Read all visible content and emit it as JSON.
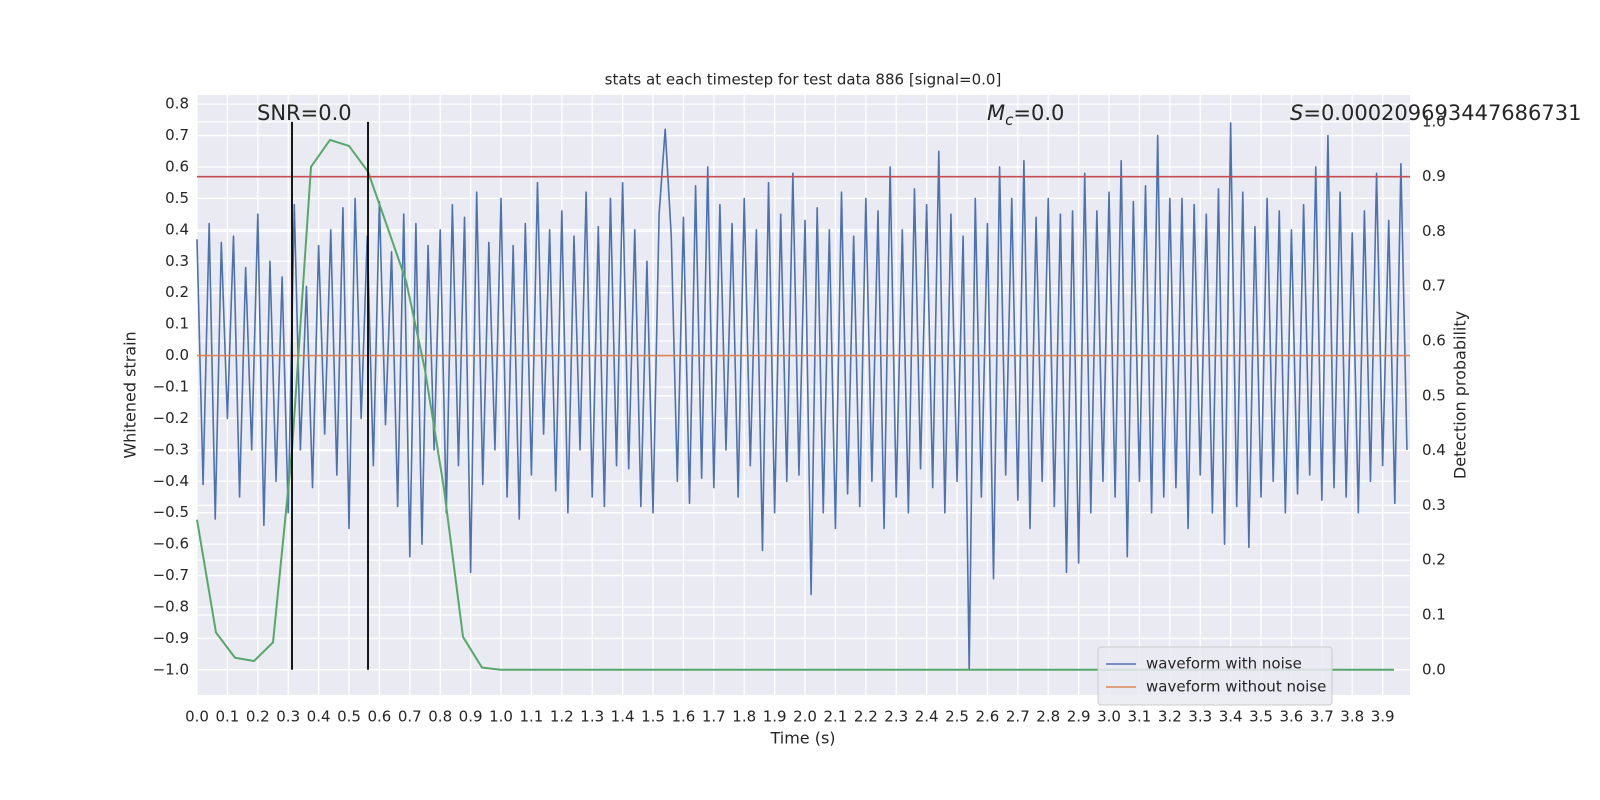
{
  "chart_data": {
    "type": "line",
    "title": "stats at each timestep for test data 886 [signal=0.0]",
    "xlabel": "Time (s)",
    "ylabel": "Whitened strain",
    "y2label": "Detection probability",
    "annotations": [
      {
        "text": "SNR=0.0"
      },
      {
        "symbol": "M",
        "sub": "c",
        "text": "=0.0"
      },
      {
        "symbol": "S",
        "text": "=0.000209693447686731"
      }
    ],
    "grid": true,
    "legend": "lower right",
    "xlim": [
      0,
      3.99
    ],
    "ylim": [
      -1.08,
      0.829
    ],
    "y2lim": [
      -0.046,
      1.049
    ],
    "xticks": [
      {
        "value": 0,
        "label": "0.0"
      },
      {
        "value": 0.1,
        "label": "0.1"
      },
      {
        "value": 0.2,
        "label": "0.2"
      },
      {
        "value": 0.3,
        "label": "0.3"
      },
      {
        "value": 0.4,
        "label": "0.4"
      },
      {
        "value": 0.5,
        "label": "0.5"
      },
      {
        "value": 0.6,
        "label": "0.6"
      },
      {
        "value": 0.7,
        "label": "0.7"
      },
      {
        "value": 0.8,
        "label": "0.8"
      },
      {
        "value": 0.9,
        "label": "0.9"
      },
      {
        "value": 1,
        "label": "1.0"
      },
      {
        "value": 1.1,
        "label": "1.1"
      },
      {
        "value": 1.2,
        "label": "1.2"
      },
      {
        "value": 1.3,
        "label": "1.3"
      },
      {
        "value": 1.4,
        "label": "1.4"
      },
      {
        "value": 1.5,
        "label": "1.5"
      },
      {
        "value": 1.6,
        "label": "1.6"
      },
      {
        "value": 1.7,
        "label": "1.7"
      },
      {
        "value": 1.8,
        "label": "1.8"
      },
      {
        "value": 1.9,
        "label": "1.9"
      },
      {
        "value": 2,
        "label": "2.0"
      },
      {
        "value": 2.1,
        "label": "2.1"
      },
      {
        "value": 2.2,
        "label": "2.2"
      },
      {
        "value": 2.3,
        "label": "2.3"
      },
      {
        "value": 2.4,
        "label": "2.4"
      },
      {
        "value": 2.5,
        "label": "2.5"
      },
      {
        "value": 2.6,
        "label": "2.6"
      },
      {
        "value": 2.7,
        "label": "2.7"
      },
      {
        "value": 2.8,
        "label": "2.8"
      },
      {
        "value": 2.9,
        "label": "2.9"
      },
      {
        "value": 3,
        "label": "3.0"
      },
      {
        "value": 3.1,
        "label": "3.1"
      },
      {
        "value": 3.2,
        "label": "3.2"
      },
      {
        "value": 3.3,
        "label": "3.3"
      },
      {
        "value": 3.4,
        "label": "3.4"
      },
      {
        "value": 3.5,
        "label": "3.5"
      },
      {
        "value": 3.6,
        "label": "3.6"
      },
      {
        "value": 3.7,
        "label": "3.7"
      },
      {
        "value": 3.8,
        "label": "3.8"
      },
      {
        "value": 3.9,
        "label": "3.9"
      }
    ],
    "yticks": [
      {
        "value": -1,
        "label": "−1.0"
      },
      {
        "value": -0.9,
        "label": "−0.9"
      },
      {
        "value": -0.8,
        "label": "−0.8"
      },
      {
        "value": -0.7,
        "label": "−0.7"
      },
      {
        "value": -0.6,
        "label": "−0.6"
      },
      {
        "value": -0.5,
        "label": "−0.5"
      },
      {
        "value": -0.4,
        "label": "−0.4"
      },
      {
        "value": -0.3,
        "label": "−0.3"
      },
      {
        "value": -0.2,
        "label": "−0.2"
      },
      {
        "value": -0.1,
        "label": "−0.1"
      },
      {
        "value": 0,
        "label": "0.0"
      },
      {
        "value": 0.1,
        "label": "0.1"
      },
      {
        "value": 0.2,
        "label": "0.2"
      },
      {
        "value": 0.3,
        "label": "0.3"
      },
      {
        "value": 0.4,
        "label": "0.4"
      },
      {
        "value": 0.5,
        "label": "0.5"
      },
      {
        "value": 0.6,
        "label": "0.6"
      },
      {
        "value": 0.7,
        "label": "0.7"
      },
      {
        "value": 0.8,
        "label": "0.8"
      }
    ],
    "y2ticks": [
      {
        "value": 0,
        "label": "0.0"
      },
      {
        "value": 0.1,
        "label": "0.1"
      },
      {
        "value": 0.2,
        "label": "0.2"
      },
      {
        "value": 0.3,
        "label": "0.3"
      },
      {
        "value": 0.4,
        "label": "0.4"
      },
      {
        "value": 0.5,
        "label": "0.5"
      },
      {
        "value": 0.6,
        "label": "0.6"
      },
      {
        "value": 0.7,
        "label": "0.7"
      },
      {
        "value": 0.8,
        "label": "0.8"
      },
      {
        "value": 0.9,
        "label": "0.9"
      },
      {
        "value": 1,
        "label": "1.0"
      }
    ],
    "hlines": [
      {
        "value": 0.9,
        "axis": "y2",
        "color": "#c44e52"
      }
    ],
    "vlines": [
      0.3125,
      0.5625
    ],
    "vline_color": "#000000",
    "series": [
      {
        "name": "waveform with noise",
        "color": "#4c72b0",
        "x": [
          0,
          0.02,
          0.04,
          0.06,
          0.08,
          0.1,
          0.12,
          0.14,
          0.16,
          0.18,
          0.2,
          0.22,
          0.24,
          0.26,
          0.28,
          0.3,
          0.32,
          0.34,
          0.36,
          0.38,
          0.4,
          0.42,
          0.44,
          0.46,
          0.48,
          0.5,
          0.52,
          0.54,
          0.56,
          0.58,
          0.6,
          0.62,
          0.64,
          0.66,
          0.68,
          0.7,
          0.72,
          0.74,
          0.76,
          0.78,
          0.8,
          0.82,
          0.84,
          0.86,
          0.88,
          0.9,
          0.92,
          0.94,
          0.96,
          0.98,
          1,
          1.02,
          1.04,
          1.06,
          1.08,
          1.1,
          1.12,
          1.14,
          1.16,
          1.18,
          1.2,
          1.22,
          1.24,
          1.26,
          1.28,
          1.3,
          1.32,
          1.34,
          1.36,
          1.38,
          1.4,
          1.42,
          1.44,
          1.46,
          1.48,
          1.5,
          1.52,
          1.54,
          1.56,
          1.58,
          1.6,
          1.62,
          1.64,
          1.66,
          1.68,
          1.7,
          1.72,
          1.74,
          1.76,
          1.78,
          1.8,
          1.82,
          1.84,
          1.86,
          1.88,
          1.9,
          1.92,
          1.94,
          1.96,
          1.98,
          2,
          2.02,
          2.04,
          2.06,
          2.08,
          2.1,
          2.12,
          2.14,
          2.16,
          2.18,
          2.2,
          2.22,
          2.24,
          2.26,
          2.28,
          2.3,
          2.32,
          2.34,
          2.36,
          2.38,
          2.4,
          2.42,
          2.44,
          2.46,
          2.48,
          2.5,
          2.52,
          2.54,
          2.56,
          2.58,
          2.6,
          2.62,
          2.64,
          2.66,
          2.68,
          2.7,
          2.72,
          2.74,
          2.76,
          2.78,
          2.8,
          2.82,
          2.84,
          2.86,
          2.88,
          2.9,
          2.92,
          2.94,
          2.96,
          2.98,
          3,
          3.02,
          3.04,
          3.06,
          3.08,
          3.1,
          3.12,
          3.14,
          3.16,
          3.18,
          3.2,
          3.22,
          3.24,
          3.26,
          3.28,
          3.3,
          3.32,
          3.34,
          3.36,
          3.38,
          3.4,
          3.42,
          3.44,
          3.46,
          3.48,
          3.5,
          3.52,
          3.54,
          3.56,
          3.58,
          3.6,
          3.62,
          3.64,
          3.66,
          3.68,
          3.7,
          3.72,
          3.74,
          3.76,
          3.78,
          3.8,
          3.82,
          3.84,
          3.86,
          3.88,
          3.9,
          3.92,
          3.94,
          3.96,
          3.98
        ],
        "values": [
          0.37,
          -0.41,
          0.42,
          -0.52,
          0.36,
          -0.2,
          0.38,
          -0.45,
          0.28,
          -0.3,
          0.45,
          -0.54,
          0.3,
          -0.4,
          0.25,
          -0.5,
          0.48,
          -0.3,
          0.22,
          -0.42,
          0.35,
          -0.25,
          0.4,
          -0.38,
          0.47,
          -0.55,
          0.5,
          -0.2,
          0.38,
          -0.35,
          0.49,
          -0.22,
          0.33,
          -0.48,
          0.45,
          -0.64,
          0.42,
          -0.6,
          0.35,
          -0.3,
          0.4,
          -0.5,
          0.48,
          -0.35,
          0.44,
          -0.69,
          0.52,
          -0.41,
          0.36,
          -0.3,
          0.5,
          -0.45,
          0.35,
          -0.52,
          0.42,
          -0.38,
          0.55,
          -0.25,
          0.4,
          -0.43,
          0.46,
          -0.5,
          0.38,
          -0.3,
          0.52,
          -0.45,
          0.41,
          -0.48,
          0.5,
          -0.35,
          0.55,
          -0.36,
          0.4,
          -0.48,
          0.3,
          -0.5,
          0.45,
          0.72,
          0.38,
          -0.4,
          0.44,
          -0.47,
          0.54,
          -0.39,
          0.6,
          -0.42,
          0.48,
          -0.3,
          0.42,
          -0.45,
          0.5,
          -0.35,
          0.4,
          -0.62,
          0.55,
          -0.5,
          0.45,
          -0.4,
          0.58,
          -0.38,
          0.43,
          -0.76,
          0.47,
          -0.5,
          0.4,
          -0.55,
          0.52,
          -0.44,
          0.38,
          -0.48,
          0.5,
          -0.4,
          0.46,
          -0.55,
          0.6,
          -0.45,
          0.4,
          -0.5,
          0.53,
          -0.36,
          0.48,
          -0.42,
          0.65,
          -0.5,
          0.45,
          -0.4,
          0.38,
          -1.0,
          0.5,
          -0.45,
          0.42,
          -0.71,
          0.6,
          -0.38,
          0.5,
          -0.46,
          0.62,
          -0.55,
          0.44,
          -0.4,
          0.5,
          -0.48,
          0.45,
          -0.69,
          0.46,
          -0.66,
          0.58,
          -0.5,
          0.46,
          -0.4,
          0.52,
          -0.45,
          0.62,
          -0.64,
          0.49,
          -0.4,
          0.54,
          -0.5,
          0.7,
          -0.45,
          0.5,
          -0.42,
          0.5,
          -0.55,
          0.48,
          -0.38,
          0.45,
          -0.5,
          0.53,
          -0.6,
          0.74,
          -0.48,
          0.52,
          -0.61,
          0.41,
          -0.45,
          0.5,
          -0.4,
          0.46,
          -0.5,
          0.4,
          -0.44,
          0.48,
          -0.38,
          0.6,
          -0.46,
          0.7,
          -0.42,
          0.52,
          -0.45,
          0.39,
          -0.5,
          0.46,
          -0.4,
          0.58,
          -0.35,
          0.43,
          -0.47,
          0.61,
          -0.3
        ]
      },
      {
        "name": "waveform without noise",
        "color": "#dd8452",
        "x": [
          0,
          3.99
        ],
        "values": [
          0,
          0
        ]
      },
      {
        "color": "#55a868",
        "axis": "y2",
        "x": [
          0,
          0.0625,
          0.125,
          0.1875,
          0.25,
          0.3125,
          0.375,
          0.4375,
          0.5,
          0.5625,
          0.625,
          0.6875,
          0.75,
          0.8125,
          0.875,
          0.9375,
          1,
          1.0625,
          1.125,
          1.1875,
          1.25,
          1.3125,
          1.375,
          1.4375,
          1.5,
          1.5625,
          1.625,
          1.6875,
          1.75,
          1.8125,
          1.875,
          1.9375,
          2,
          2.0625,
          2.125,
          2.1875,
          2.25,
          2.3125,
          2.375,
          2.4375,
          2.5,
          2.5625,
          2.625,
          2.6875,
          2.75,
          2.8125,
          2.875,
          2.9375,
          3,
          3.0625,
          3.125,
          3.1875,
          3.25,
          3.3125,
          3.375,
          3.4375,
          3.5,
          3.5625,
          3.625,
          3.6875,
          3.75,
          3.8125,
          3.875,
          3.9375
        ],
        "values": [
          0.274,
          0.068,
          0.022,
          0.016,
          0.05,
          0.4,
          0.918,
          0.967,
          0.956,
          0.909,
          0.81,
          0.71,
          0.547,
          0.33,
          0.06,
          0.004,
          0,
          0,
          0,
          0,
          0,
          0,
          0,
          0,
          0,
          0,
          0,
          0,
          0,
          0,
          0,
          0,
          0,
          0,
          0,
          0,
          0,
          0,
          0,
          0,
          0,
          0,
          0,
          0,
          0,
          0,
          0,
          0,
          0,
          0,
          0,
          0,
          0,
          0,
          0,
          0,
          0,
          0,
          0,
          0,
          0,
          0,
          0,
          0
        ]
      }
    ]
  }
}
